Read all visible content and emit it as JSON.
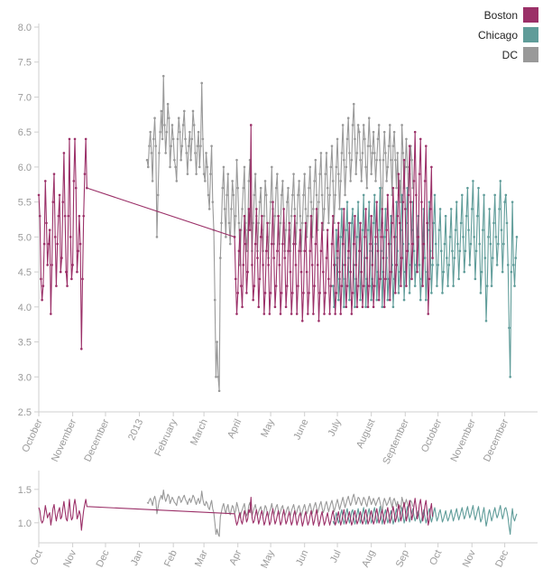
{
  "colors": {
    "Boston": "#9b3068",
    "Chicago": "#5f9c99",
    "DC": "#999999",
    "axis": "#cfcfcf",
    "tick_text": "#9a9a9a"
  },
  "chart_data": {
    "type": "line",
    "start_date": "2012-10-01",
    "legend": {
      "placement": "top-right",
      "entries": [
        "Boston",
        "Chicago",
        "DC"
      ]
    },
    "series": [
      {
        "name": "Boston",
        "segments": [
          {
            "start": 0,
            "values": [
              5.6,
              5.3,
              4.4,
              4.1,
              4.3,
              4.9,
              5.8,
              5.2,
              4.6,
              4.9,
              5.1,
              3.9,
              4.6,
              5.5,
              5.9,
              5.0,
              4.3,
              4.9,
              5.3,
              5.6,
              4.5,
              4.7,
              5.5,
              6.2,
              5.3,
              4.5,
              4.3,
              5.3,
              6.4,
              5.0,
              4.4,
              4.6,
              5.8,
              6.4,
              5.7,
              4.5,
              4.8,
              5.3,
              4.9,
              3.4,
              4.4,
              5.3,
              5.9,
              6.4,
              5.7
            ]
          },
          {
            "start": 179,
            "values": [
              5.0,
              4.4,
              3.9,
              4.2,
              4.8,
              5.1,
              4.3,
              4.0,
              4.6,
              5.3,
              4.9,
              4.2,
              4.5,
              5.4,
              5.1,
              6.6,
              4.6,
              4.1,
              4.3,
              4.9,
              5.4,
              4.7,
              4.0,
              4.4,
              5.0,
              5.3,
              4.6,
              3.9,
              4.2,
              4.8,
              5.2,
              4.6,
              3.9,
              4.2,
              4.9,
              5.5,
              4.7,
              4.0,
              4.3,
              4.8,
              5.3,
              4.6,
              3.9,
              4.2,
              4.9,
              5.4,
              4.7,
              4.0,
              4.3,
              4.8,
              5.2,
              4.5,
              3.9,
              4.2,
              4.9,
              5.3,
              4.6,
              3.9,
              4.3,
              4.8,
              5.1,
              4.5,
              3.8,
              4.2,
              4.8,
              5.2,
              4.5,
              3.9,
              4.2,
              4.8,
              5.3,
              4.6,
              3.9,
              4.3,
              4.9,
              5.4,
              4.6,
              3.8,
              4.2,
              4.8,
              5.2,
              4.5,
              3.9,
              4.2,
              4.7,
              5.1,
              4.4,
              3.9,
              4.3,
              4.9,
              5.3,
              4.6,
              3.9,
              4.2,
              4.8,
              5.2,
              4.5,
              3.9,
              4.3,
              4.9,
              5.4,
              4.6,
              4.0,
              4.3,
              4.8,
              5.2,
              4.5,
              3.9,
              4.2,
              4.9,
              5.3,
              4.6,
              4.0,
              4.3,
              4.8,
              5.2,
              4.5,
              4.0,
              4.3,
              5.0,
              5.4,
              4.7,
              4.0,
              4.3,
              4.9,
              5.3,
              4.6,
              4.0,
              4.3,
              5.0,
              5.5,
              4.8,
              4.1,
              4.4,
              5.0,
              5.4,
              4.7,
              4.0,
              4.4,
              5.1,
              5.6,
              4.9,
              4.1,
              4.5,
              5.2,
              5.7,
              5.0,
              4.2,
              4.6,
              5.3,
              5.9,
              5.2,
              4.3,
              4.7,
              5.5,
              6.1,
              5.4,
              4.3,
              4.8,
              5.6,
              6.3,
              5.5,
              4.4,
              4.9,
              5.8,
              6.5,
              5.6,
              4.5,
              5.0,
              5.9,
              6.4,
              5.5,
              4.3,
              4.9,
              5.8,
              6.3,
              5.2,
              3.9,
              4.4,
              5.4,
              6.0,
              4.7
            ]
          }
        ]
      },
      {
        "name": "Chicago",
        "segments": [
          {
            "start": 269,
            "values": [
              4.3,
              4.0,
              4.6,
              5.1,
              4.7,
              4.1,
              4.4,
              5.0,
              5.4,
              4.6,
              4.0,
              4.4,
              5.1,
              5.5,
              4.7,
              4.1,
              4.5,
              5.2,
              5.4,
              4.6,
              4.0,
              4.4,
              5.0,
              5.5,
              4.8,
              4.1,
              4.5,
              5.1,
              5.6,
              4.7,
              4.0,
              4.4,
              5.1,
              5.5,
              4.8,
              4.1,
              4.4,
              5.2,
              5.6,
              4.9,
              4.1,
              4.5,
              5.1,
              5.7,
              4.8,
              4.0,
              4.5,
              5.0,
              5.4,
              4.7,
              4.1,
              4.4,
              4.9,
              5.3,
              4.6,
              4.0,
              4.4,
              5.0,
              5.5,
              4.8,
              4.2,
              4.5,
              5.1,
              5.6,
              4.9,
              4.1,
              4.5,
              5.2,
              5.7,
              4.9,
              4.2,
              4.6,
              5.1,
              5.5,
              4.8,
              4.3,
              4.6,
              5.0,
              5.3,
              4.6,
              4.1,
              4.4,
              4.9,
              5.4,
              4.7,
              4.1,
              4.5,
              5.1,
              5.5,
              4.8,
              4.2,
              4.6,
              5.2,
              5.6,
              4.9,
              4.3,
              4.6,
              5.1,
              5.4,
              4.8,
              4.2,
              4.5,
              4.9,
              5.3,
              4.7,
              4.3,
              4.6,
              5.0,
              5.4,
              4.8,
              4.3,
              4.7,
              5.1,
              5.5,
              4.9,
              4.4,
              4.8,
              5.2,
              5.6,
              5.0,
              4.5,
              4.8,
              5.3,
              5.7,
              5.1,
              4.6,
              4.9,
              5.4,
              5.8,
              5.0,
              4.4,
              4.8,
              5.3,
              5.7,
              4.9,
              4.2,
              4.5,
              5.1,
              5.6,
              4.7,
              3.8,
              4.3,
              5.0,
              5.4,
              4.9,
              4.3,
              4.7,
              5.2,
              5.6,
              5.0,
              4.6,
              4.9,
              5.4,
              5.8,
              5.1,
              4.5,
              4.9,
              5.5,
              5.6,
              5.2,
              4.6,
              3.7,
              3.0,
              4.5,
              5.5,
              4.6,
              4.3,
              4.7,
              5.0
            ]
          }
        ]
      },
      {
        "name": "DC",
        "segments": [
          {
            "start": 99,
            "values": [
              6.1,
              6.0,
              6.3,
              6.5,
              6.2,
              5.8,
              6.4,
              6.7,
              6.3,
              5.0,
              5.6,
              6.2,
              6.5,
              6.8,
              6.4,
              7.3,
              6.6,
              6.2,
              6.5,
              6.9,
              6.7,
              6.0,
              6.3,
              6.6,
              6.4,
              6.1,
              6.0,
              5.8,
              6.4,
              6.7,
              6.5,
              6.1,
              6.3,
              6.6,
              6.8,
              6.4,
              6.2,
              5.9,
              6.3,
              6.5,
              6.1,
              6.4,
              6.8,
              6.6,
              6.2,
              5.9,
              6.3,
              6.5,
              6.0,
              6.3,
              7.2,
              6.4,
              5.9,
              5.8,
              6.2,
              6.0,
              5.6,
              5.4,
              5.9,
              6.3,
              5.5,
              5.1,
              4.1,
              3.0,
              3.5,
              3.0,
              2.8,
              4.7,
              5.2,
              5.7,
              6.0,
              5.4,
              5.0,
              5.6,
              5.9,
              5.2,
              4.9,
              5.4,
              5.8,
              5.6,
              5.0,
              5.3,
              6.1,
              5.7,
              5.2,
              4.6,
              5.1,
              5.4,
              5.7,
              6.0,
              5.2,
              4.8,
              5.1,
              5.8,
              6.1,
              5.3,
              4.8,
              5.2,
              5.6,
              5.9,
              5.3,
              4.8,
              5.2,
              5.5,
              5.7,
              5.1,
              4.8,
              5.3,
              5.8,
              5.6,
              5.0,
              4.7,
              5.2,
              5.5,
              6.0,
              5.4,
              4.9,
              5.3,
              5.7,
              5.9,
              5.3,
              4.9,
              5.2,
              5.6,
              5.8,
              5.2,
              4.8,
              5.1,
              5.5,
              5.7,
              5.1,
              4.8,
              5.3,
              5.6,
              5.9,
              5.4,
              4.9,
              5.2,
              5.6,
              5.8,
              5.3,
              4.8,
              5.2,
              5.6,
              5.9,
              5.4,
              5.0,
              5.3,
              5.7,
              6.0,
              5.5,
              5.0,
              5.4,
              5.8,
              6.1,
              5.6,
              5.1,
              5.5,
              5.9,
              6.2,
              5.6,
              5.1,
              5.4,
              5.9,
              6.2,
              5.7,
              5.2,
              5.6,
              6.0,
              6.3,
              5.8,
              5.2,
              5.6,
              6.0,
              6.4,
              5.9,
              5.4,
              5.8,
              6.2,
              6.6,
              6.1,
              5.6,
              6.0,
              6.4,
              6.7,
              6.2,
              5.8,
              6.1,
              6.6,
              6.9,
              6.4,
              5.9,
              6.2,
              6.6,
              6.5,
              6.1,
              5.8,
              6.2,
              6.6,
              6.4,
              6.0,
              5.7,
              6.3,
              6.7,
              6.3,
              5.9,
              6.2,
              6.5,
              6.2,
              5.8,
              6.1,
              6.4,
              6.6,
              6.1,
              5.7,
              5.2,
              6.1,
              6.5,
              6.2,
              5.8,
              6.0,
              6.3,
              6.6,
              6.1,
              5.6,
              6.3,
              6.5,
              6.1,
              5.7,
              6.2,
              5.6,
              5.8,
              5.5,
              6.6,
              6.2,
              5.7,
              6.0,
              6.4,
              6.0,
              5.6,
              5.9,
              6.3,
              6.1,
              5.7
            ]
          }
        ]
      }
    ],
    "main_chart": {
      "ylim": [
        2.5,
        8.0
      ],
      "yticks": [
        "2.5",
        "3.0",
        "3.5",
        "4.0",
        "4.5",
        "5.0",
        "5.5",
        "6.0",
        "6.5",
        "7.0",
        "7.5",
        "8.0"
      ],
      "xticks": [
        {
          "label": "October",
          "date": "2012-10-01"
        },
        {
          "label": "November",
          "date": "2012-11-01"
        },
        {
          "label": "December",
          "date": "2012-12-01"
        },
        {
          "label": "2013",
          "date": "2013-01-01"
        },
        {
          "label": "February",
          "date": "2013-02-01"
        },
        {
          "label": "March",
          "date": "2013-03-01"
        },
        {
          "label": "April",
          "date": "2013-04-01"
        },
        {
          "label": "May",
          "date": "2013-05-01"
        },
        {
          "label": "June",
          "date": "2013-06-01"
        },
        {
          "label": "July",
          "date": "2013-07-01"
        },
        {
          "label": "August",
          "date": "2013-08-01"
        },
        {
          "label": "September",
          "date": "2013-09-01"
        },
        {
          "label": "October",
          "date": "2013-10-01"
        },
        {
          "label": "November",
          "date": "2013-11-01"
        },
        {
          "label": "December",
          "date": "2013-12-01"
        }
      ]
    },
    "context_chart": {
      "ylim": [
        0.7,
        1.7
      ],
      "yticks": [
        "1.0",
        "1.5"
      ],
      "xticks": [
        {
          "label": "Oct",
          "date": "2012-10-01"
        },
        {
          "label": "Nov",
          "date": "2012-11-01"
        },
        {
          "label": "Dec",
          "date": "2012-12-01"
        },
        {
          "label": "Jan",
          "date": "2013-01-01"
        },
        {
          "label": "Feb",
          "date": "2013-02-01"
        },
        {
          "label": "Mar",
          "date": "2013-03-01"
        },
        {
          "label": "Apr",
          "date": "2013-04-01"
        },
        {
          "label": "May",
          "date": "2013-05-01"
        },
        {
          "label": "Jun",
          "date": "2013-06-01"
        },
        {
          "label": "Jul",
          "date": "2013-07-01"
        },
        {
          "label": "Aug",
          "date": "2013-08-01"
        },
        {
          "label": "Sep",
          "date": "2013-09-01"
        },
        {
          "label": "Oct",
          "date": "2013-10-01"
        },
        {
          "label": "Nov",
          "date": "2013-11-01"
        },
        {
          "label": "Dec",
          "date": "2013-12-01"
        }
      ]
    }
  }
}
